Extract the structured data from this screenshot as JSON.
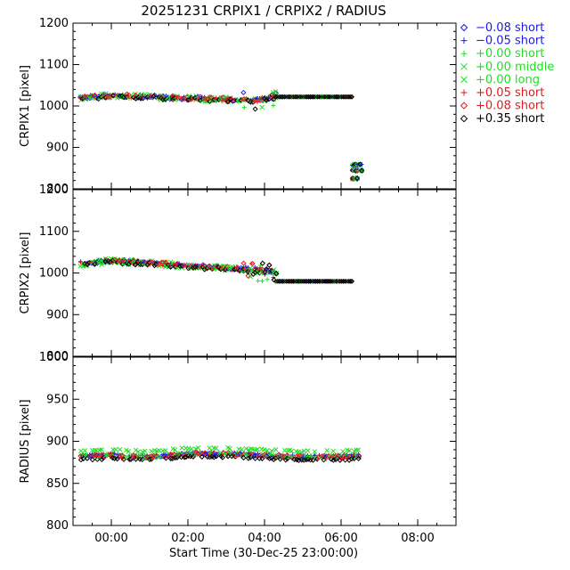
{
  "title": "20251231 CRPIX1 / CRPIX2 / RADIUS",
  "x_axis": {
    "label": "Start Time (30-Dec-25 23:00:00)",
    "tick_labels": [
      "00:00",
      "02:00",
      "04:00",
      "06:00",
      "08:00"
    ],
    "tick_hours": [
      1,
      3,
      5,
      7,
      9
    ],
    "range_hours": [
      0,
      10
    ]
  },
  "legend": {
    "placement": "right",
    "items": [
      {
        "symbol": "diamond",
        "label": "−0.08 short",
        "color": "#1a1ae6"
      },
      {
        "symbol": "plus",
        "label": "−0.05 short",
        "color": "#1a1ae6"
      },
      {
        "symbol": "plus",
        "label": "+0.00 short",
        "color": "#22dd22"
      },
      {
        "symbol": "x",
        "label": "+0.00 middle",
        "color": "#22dd22"
      },
      {
        "symbol": "x",
        "label": "+0.00 long",
        "color": "#22dd22"
      },
      {
        "symbol": "plus",
        "label": "+0.05 short",
        "color": "#e61a1a"
      },
      {
        "symbol": "diamond",
        "label": "+0.08 short",
        "color": "#e61a1a"
      },
      {
        "symbol": "diamond",
        "label": "+0.35 short",
        "color": "#000000"
      }
    ]
  },
  "chart_data": [
    {
      "type": "scatter",
      "ylabel": "CRPIX1 [pixel]",
      "ylim": [
        800,
        1200
      ],
      "y_ticks": [
        800,
        900,
        1000,
        1100,
        1200
      ],
      "trend_x_hours": [
        0.2,
        1.0,
        2.0,
        3.0,
        4.0,
        4.6,
        5.0,
        5.3
      ],
      "trend_y": [
        1020,
        1024,
        1022,
        1018,
        1016,
        1013,
        1017,
        1020
      ],
      "main_x_range_hours": [
        0.2,
        5.3
      ],
      "flat": {
        "x_range_hours": [
          5.3,
          7.3
        ],
        "value": 1022
      },
      "late": {
        "x_range_hours": [
          7.3,
          7.55
        ],
        "values": [
          845,
          858,
          825
        ]
      }
    },
    {
      "type": "scatter",
      "ylabel": "CRPIX2 [pixel]",
      "ylim": [
        800,
        1200
      ],
      "y_ticks": [
        800,
        900,
        1000,
        1100,
        1200
      ],
      "trend_x_hours": [
        0.2,
        1.0,
        2.0,
        3.0,
        4.0,
        4.7,
        5.3
      ],
      "trend_y": [
        1022,
        1028,
        1024,
        1016,
        1012,
        1006,
        1000
      ],
      "main_x_range_hours": [
        0.2,
        5.3
      ],
      "flat": {
        "x_range_hours": [
          5.3,
          7.3
        ],
        "value": 980
      }
    },
    {
      "type": "scatter",
      "ylabel": "RADIUS [pixel]",
      "ylim": [
        800,
        1000
      ],
      "y_ticks": [
        800,
        850,
        900,
        950,
        1000
      ],
      "trend_x_hours": [
        0.2,
        1.0,
        2.0,
        3.0,
        4.0,
        5.0,
        6.0,
        7.5
      ],
      "trend_y": [
        881,
        882,
        880,
        884,
        884,
        882,
        880,
        881
      ],
      "main_x_range_hours": [
        0.2,
        7.5
      ]
    }
  ]
}
